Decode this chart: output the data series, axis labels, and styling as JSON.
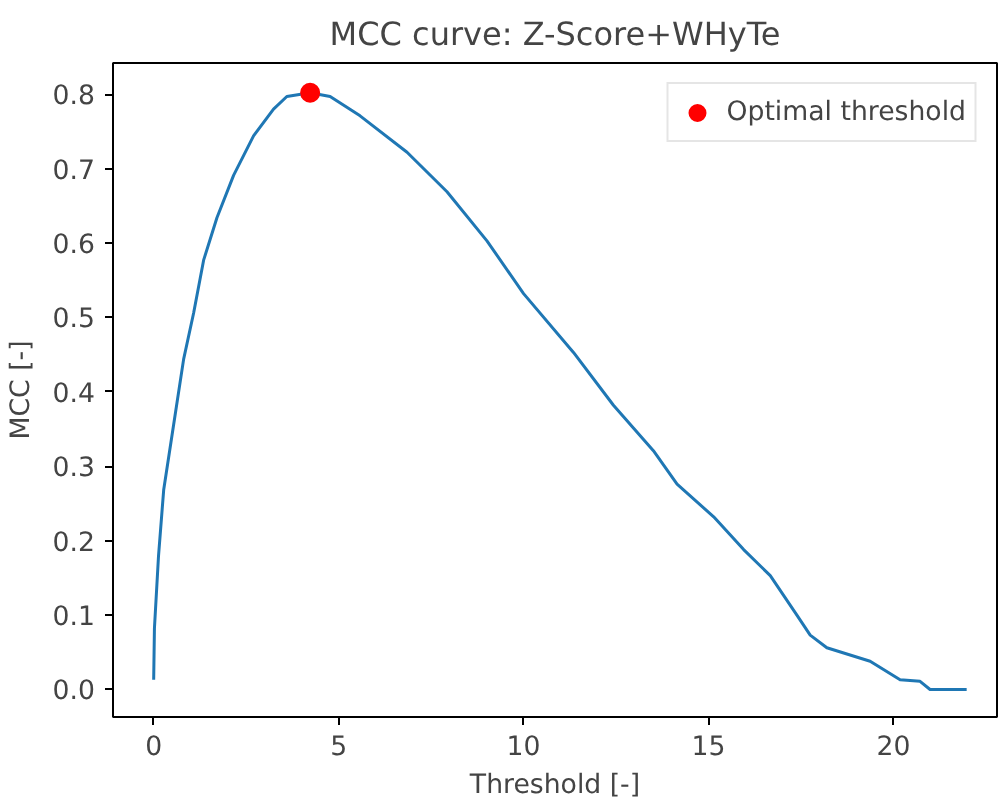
{
  "chart_data": {
    "type": "line",
    "title": "MCC curve: Z-Score+WHyTe",
    "xlabel": "Threshold [-]",
    "ylabel": "MCC [-]",
    "xlim": [
      -1.1,
      22.8
    ],
    "ylim": [
      -0.037,
      0.842
    ],
    "xticks": [
      0,
      5,
      10,
      15,
      20
    ],
    "yticks": [
      {
        "value": 0,
        "label": "0.0"
      },
      0.1,
      0.2,
      0.3,
      0.4,
      0.5,
      0.6,
      0.7,
      0.8
    ],
    "grid": false,
    "legend": "top right",
    "series": [
      {
        "color": "#1f77b4",
        "x": [
          0,
          0.02,
          0.13,
          0.27,
          0.54,
          0.81,
          1.08,
          1.35,
          1.71,
          2.16,
          2.7,
          3.24,
          3.6,
          4.23,
          4.77,
          5.58,
          6.85,
          7.93,
          9.01,
          10.0,
          11.35,
          12.43,
          13.51,
          14.15,
          15.14,
          15.95,
          16.67,
          17.39,
          17.75,
          18.2,
          19.37,
          20.18,
          20.72,
          20.99,
          21.98
        ],
        "values": [
          0.013,
          0.082,
          0.179,
          0.268,
          0.356,
          0.444,
          0.506,
          0.577,
          0.634,
          0.691,
          0.744,
          0.78,
          0.797,
          0.802,
          0.797,
          0.771,
          0.722,
          0.669,
          0.603,
          0.532,
          0.453,
          0.382,
          0.321,
          0.276,
          0.232,
          0.188,
          0.153,
          0.1,
          0.073,
          0.056,
          0.038,
          0.013,
          0.011,
          0.0,
          0.0
        ]
      },
      {
        "type": "scatter",
        "name": "Optimal threshold",
        "color": "#ff0000",
        "x": [
          4.23
        ],
        "values": [
          0.802
        ]
      }
    ]
  }
}
